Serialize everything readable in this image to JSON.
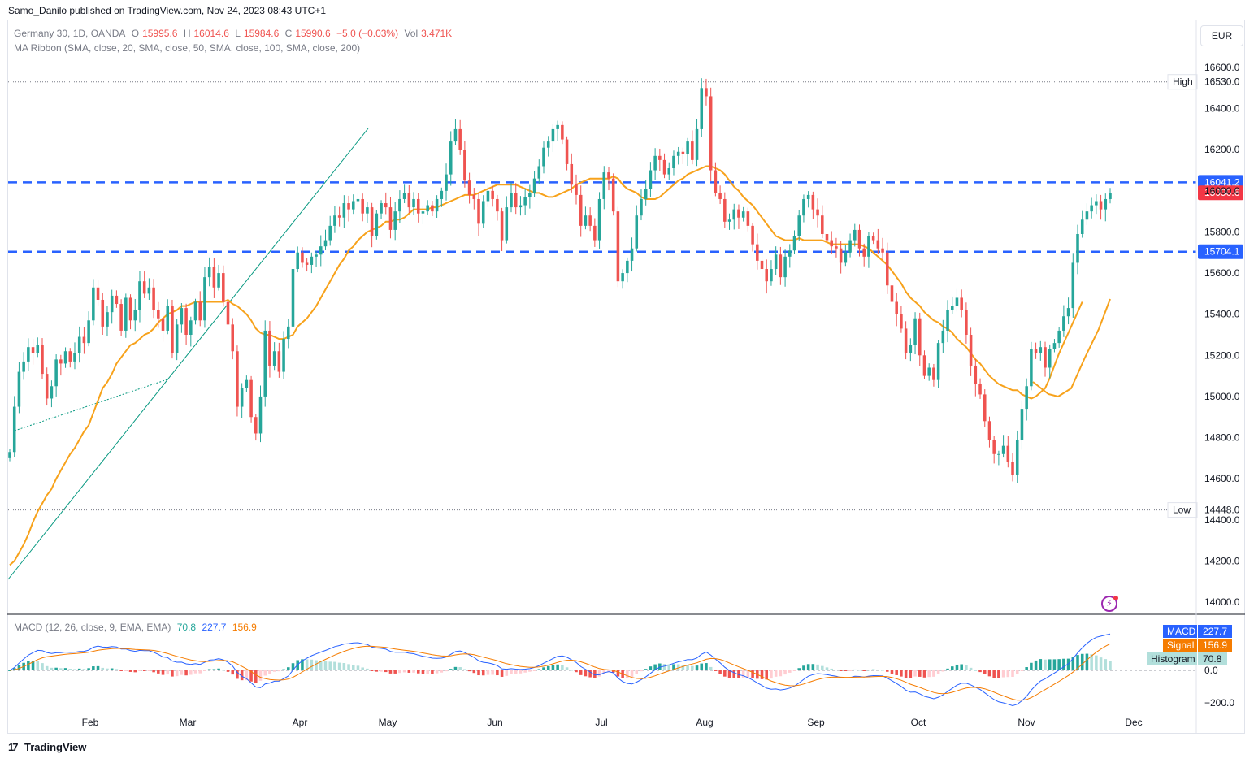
{
  "publisher_line": "Samo_Danilo published on TradingView.com, Nov 24, 2023 08:43 UTC+1",
  "currency_button": "EUR",
  "footer_brand": "TradingView",
  "legend": {
    "symbol": "Germany 30, 1D, OANDA",
    "o_label": "O",
    "o": "15995.6",
    "h_label": "H",
    "h": "16014.6",
    "l_label": "L",
    "l": "15984.6",
    "c_label": "C",
    "c": "15990.6",
    "change": "−5.0 (−0.03%)",
    "vol_label": "Vol",
    "vol": "3.471K",
    "ma_ribbon": "MA Ribbon (SMA, close, 20, SMA, close, 50, SMA, close, 100, SMA, close, 200)",
    "macd_title": "MACD (12, 26, close, 9, EMA, EMA)",
    "macd_hist": "70.8",
    "macd_macd": "227.7",
    "macd_signal": "156.9"
  },
  "colors": {
    "up": "#26a69a",
    "down": "#ef5350",
    "ma20": "#f7a21b",
    "level": "#2962ff",
    "macd": "#2962ff",
    "signal": "#f57c00",
    "hist_up_strong": "#26a69a",
    "hist_up_weak": "#b2dfdb",
    "hist_down_strong": "#ef5350",
    "hist_down_weak": "#ffcdd2"
  },
  "chart_data": [
    {
      "type": "candlestick",
      "title": "Germany 30, 1D, OANDA",
      "ylim": [
        13900,
        16700
      ],
      "y_ticks": [
        "16600.0",
        "16400.0",
        "16200.0",
        "16000.0",
        "15800.0",
        "15600.0",
        "15400.0",
        "15200.0",
        "15000.0",
        "14800.0",
        "14600.0",
        "14400.0",
        "14200.0",
        "14000.0"
      ],
      "x_labels": [
        "Feb",
        "Mar",
        "Apr",
        "May",
        "Jun",
        "Jul",
        "Aug",
        "Sep",
        "Oct",
        "Nov",
        "Dec"
      ],
      "high_line": {
        "label": "High",
        "value": "16530.0"
      },
      "low_line": {
        "label": "Low",
        "value": "14448.0"
      },
      "levels": [
        {
          "label": "16041.2",
          "value": 16041.2
        },
        {
          "label": "15704.1",
          "value": 15704.1
        }
      ],
      "last_price": {
        "label": "15990.6",
        "value": 15990.6
      },
      "closes": [
        14730,
        14950,
        15120,
        15170,
        15240,
        15210,
        15250,
        15110,
        14990,
        15050,
        15180,
        15160,
        15220,
        15170,
        15210,
        15290,
        15260,
        15370,
        15530,
        15470,
        15340,
        15410,
        15490,
        15450,
        15320,
        15480,
        15370,
        15420,
        15560,
        15500,
        15530,
        15420,
        15380,
        15320,
        15440,
        15210,
        15350,
        15430,
        15300,
        15370,
        15460,
        15370,
        15580,
        15630,
        15530,
        15600,
        15460,
        15350,
        15220,
        14950,
        15040,
        15080,
        14900,
        14820,
        15000,
        15320,
        15150,
        15220,
        15120,
        15280,
        15340,
        15620,
        15700,
        15650,
        15640,
        15680,
        15690,
        15730,
        15760,
        15830,
        15880,
        15870,
        15940,
        15910,
        15950,
        15960,
        15890,
        15920,
        15780,
        15890,
        15940,
        15920,
        15810,
        15900,
        15960,
        15990,
        15920,
        15960,
        15890,
        15900,
        15930,
        15900,
        15960,
        16000,
        16080,
        16240,
        16300,
        16200,
        16050,
        15980,
        15960,
        15840,
        15950,
        16000,
        15960,
        15900,
        15760,
        15920,
        15990,
        15920,
        15930,
        15970,
        15990,
        16060,
        16120,
        16210,
        16240,
        16300,
        16320,
        16250,
        16130,
        16030,
        15980,
        15830,
        15880,
        15830,
        15760,
        15960,
        16090,
        16060,
        15900,
        15560,
        15600,
        15660,
        15720,
        15880,
        15960,
        16010,
        16100,
        16170,
        16150,
        16080,
        16110,
        16170,
        16190,
        16180,
        16240,
        16150,
        16300,
        16500,
        16460,
        16100,
        15990,
        15960,
        15850,
        15860,
        15910,
        15870,
        15900,
        15830,
        15740,
        15660,
        15620,
        15560,
        15620,
        15690,
        15580,
        15680,
        15710,
        15780,
        15880,
        15960,
        15980,
        15910,
        15880,
        15790,
        15760,
        15730,
        15720,
        15650,
        15700,
        15760,
        15810,
        15720,
        15680,
        15780,
        15760,
        15720,
        15700,
        15540,
        15460,
        15400,
        15330,
        15210,
        15250,
        15380,
        15200,
        15100,
        15140,
        15080,
        15260,
        15320,
        15420,
        15440,
        15480,
        15420,
        15300,
        15150,
        15060,
        15010,
        14880,
        14790,
        14720,
        14720,
        14760,
        14680,
        14620,
        14790,
        14940,
        15050,
        15230,
        15210,
        15240,
        15140,
        15230,
        15260,
        15320,
        15390,
        15430,
        15650,
        15790,
        15860,
        15900,
        15930,
        15950,
        15910,
        15960,
        15990
      ],
      "ma20": [
        14180,
        14200,
        14240,
        14280,
        14330,
        14390,
        14440,
        14480,
        14520,
        14550,
        14600,
        14640,
        14680,
        14720,
        14750,
        14790,
        14830,
        14860,
        14920,
        14980,
        15040,
        15070,
        15110,
        15160,
        15190,
        15220,
        15250,
        15260,
        15280,
        15300,
        15310,
        15330,
        15360,
        15380,
        15400,
        15410,
        15420,
        15440,
        15440,
        15450,
        15460,
        15460,
        15460,
        15460,
        15460,
        15460,
        15460,
        15470,
        15450,
        15440,
        15420,
        15400,
        15370,
        15330,
        15310,
        15300,
        15300,
        15290,
        15280,
        15280,
        15290,
        15300,
        15340,
        15360,
        15380,
        15410,
        15440,
        15480,
        15520,
        15560,
        15600,
        15640,
        15670,
        15710,
        15730,
        15760,
        15780,
        15800,
        15810,
        15820,
        15830,
        15850,
        15850,
        15860,
        15860,
        15870,
        15890,
        15910,
        15910,
        15910,
        15910,
        15920,
        15920,
        15930,
        15940,
        15950,
        15960,
        15970,
        15980,
        15980,
        15980,
        15990,
        16000,
        16010,
        16020,
        16030,
        16030,
        16030,
        16030,
        16030,
        16020,
        16010,
        16000,
        15990,
        15990,
        15980,
        15970,
        15970,
        15980,
        15990,
        16000,
        16010,
        16030,
        16040,
        16050,
        16060,
        16060,
        16060,
        16060,
        16060,
        16070,
        16060,
        16030,
        16010,
        16000,
        15990,
        15970,
        15960,
        15960,
        15960,
        15970,
        15990,
        16010,
        16030,
        16050,
        16060,
        16080,
        16090,
        16100,
        16110,
        16120,
        16120,
        16110,
        16100,
        16080,
        16050,
        16020,
        16000,
        15970,
        15950,
        15930,
        15900,
        15870,
        15840,
        15810,
        15780,
        15770,
        15760,
        15760,
        15760,
        15770,
        15760,
        15760,
        15760,
        15760,
        15760,
        15750,
        15740,
        15740,
        15740,
        15740,
        15740,
        15740,
        15740,
        15730,
        15720,
        15700,
        15680,
        15660,
        15640,
        15610,
        15580,
        15550,
        15510,
        15480,
        15460,
        15440,
        15410,
        15390,
        15370,
        15360,
        15340,
        15330,
        15310,
        15280,
        15260,
        15240,
        15210,
        15180,
        15160,
        15130,
        15100,
        15080,
        15060,
        15050,
        15040,
        15030,
        15030,
        15010,
        15000,
        14990,
        15000,
        15020,
        15040,
        15090,
        15150,
        15210,
        15260,
        15310,
        15360,
        15410,
        15460
      ]
    },
    {
      "type": "bar+line",
      "title": "MACD (12, 26, close, 9, EMA, EMA)",
      "ylim": [
        -300,
        400
      ],
      "y_ticks": [
        "0.0",
        "−200.0"
      ],
      "series": [
        {
          "name": "MACD",
          "value": "227.7"
        },
        {
          "name": "Signal",
          "value": "156.9"
        },
        {
          "name": "Histogram",
          "value": "70.8"
        }
      ]
    }
  ]
}
